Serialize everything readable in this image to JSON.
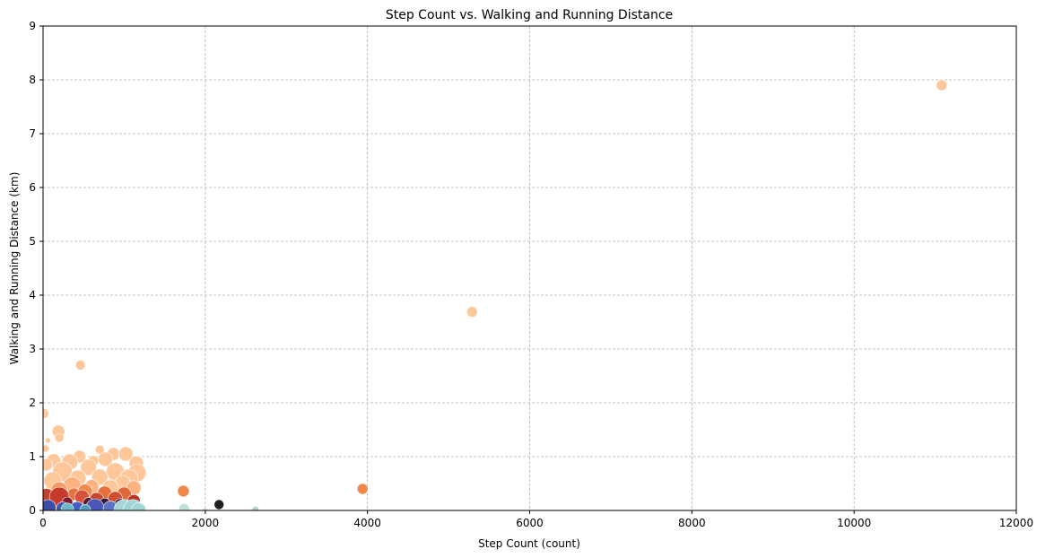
{
  "chart_data": {
    "type": "scatter",
    "title": "Step Count vs. Walking and Running Distance",
    "xlabel": "Step Count (count)",
    "ylabel": "Walking and Running Distance (km)",
    "xlim": [
      0,
      12000
    ],
    "ylim": [
      0,
      9
    ],
    "xticks": [
      0,
      2000,
      4000,
      6000,
      8000,
      10000,
      12000
    ],
    "yticks": [
      0,
      1,
      2,
      3,
      4,
      5,
      6,
      7,
      8,
      9
    ],
    "grid": true,
    "points": [
      {
        "x": 11080,
        "y": 7.9,
        "r": 6,
        "color": "#fdc79a"
      },
      {
        "x": 5290,
        "y": 3.69,
        "r": 6,
        "color": "#fdc79a"
      },
      {
        "x": 460,
        "y": 2.7,
        "r": 5.5,
        "color": "#fdc79a"
      },
      {
        "x": 10,
        "y": 1.8,
        "r": 5.5,
        "color": "#fdc79a"
      },
      {
        "x": 190,
        "y": 1.47,
        "r": 7,
        "color": "#fdc79a"
      },
      {
        "x": 200,
        "y": 1.35,
        "r": 5,
        "color": "#fdc79a"
      },
      {
        "x": 60,
        "y": 1.3,
        "r": 3,
        "color": "#fdc79a"
      },
      {
        "x": 30,
        "y": 1.15,
        "r": 4,
        "color": "#fdc79a"
      },
      {
        "x": 700,
        "y": 1.13,
        "r": 5,
        "color": "#fdc79a"
      },
      {
        "x": 870,
        "y": 1.05,
        "r": 7,
        "color": "#fdc79a"
      },
      {
        "x": 1020,
        "y": 1.05,
        "r": 8,
        "color": "#fdc79a"
      },
      {
        "x": 450,
        "y": 1.0,
        "r": 7,
        "color": "#fdc79a"
      },
      {
        "x": 130,
        "y": 0.92,
        "r": 8,
        "color": "#fdc79a"
      },
      {
        "x": 330,
        "y": 0.9,
        "r": 9,
        "color": "#fdc79a"
      },
      {
        "x": 620,
        "y": 0.92,
        "r": 6,
        "color": "#fdc79a"
      },
      {
        "x": 770,
        "y": 0.95,
        "r": 8,
        "color": "#fdc79a"
      },
      {
        "x": 1150,
        "y": 0.88,
        "r": 8,
        "color": "#fdc79a"
      },
      {
        "x": 40,
        "y": 0.85,
        "r": 7,
        "color": "#fdc79a"
      },
      {
        "x": 560,
        "y": 0.8,
        "r": 9,
        "color": "#fdc79a"
      },
      {
        "x": 890,
        "y": 0.72,
        "r": 10,
        "color": "#fdc79a"
      },
      {
        "x": 1160,
        "y": 0.7,
        "r": 10,
        "color": "#fdc79a"
      },
      {
        "x": 240,
        "y": 0.72,
        "r": 11,
        "color": "#fdc79a"
      },
      {
        "x": 700,
        "y": 0.62,
        "r": 9,
        "color": "#fdc79a"
      },
      {
        "x": 1060,
        "y": 0.6,
        "r": 10,
        "color": "#fdc79a"
      },
      {
        "x": 430,
        "y": 0.6,
        "r": 9,
        "color": "#fdc79a"
      },
      {
        "x": 980,
        "y": 0.5,
        "r": 9,
        "color": "#fdc79a"
      },
      {
        "x": 120,
        "y": 0.55,
        "r": 10,
        "color": "#fdc79a"
      },
      {
        "x": 830,
        "y": 0.42,
        "r": 9,
        "color": "#fdc79a"
      },
      {
        "x": 360,
        "y": 0.46,
        "r": 10,
        "color": "#fcb37f"
      },
      {
        "x": 600,
        "y": 0.44,
        "r": 8,
        "color": "#fcb37f"
      },
      {
        "x": 1120,
        "y": 0.42,
        "r": 8,
        "color": "#fcb37f"
      },
      {
        "x": 200,
        "y": 0.38,
        "r": 9,
        "color": "#f59a63"
      },
      {
        "x": 520,
        "y": 0.36,
        "r": 8,
        "color": "#f08a4f"
      },
      {
        "x": 1730,
        "y": 0.36,
        "r": 6.5,
        "color": "#ef8748"
      },
      {
        "x": 3940,
        "y": 0.4,
        "r": 6,
        "color": "#ef8748"
      },
      {
        "x": 760,
        "y": 0.32,
        "r": 8,
        "color": "#e8703c"
      },
      {
        "x": 1000,
        "y": 0.3,
        "r": 8,
        "color": "#e16536"
      },
      {
        "x": 380,
        "y": 0.3,
        "r": 7,
        "color": "#e5723f"
      },
      {
        "x": 40,
        "y": 0.26,
        "r": 9,
        "color": "#c6402e"
      },
      {
        "x": 200,
        "y": 0.25,
        "r": 11,
        "color": "#c73b2a"
      },
      {
        "x": 480,
        "y": 0.25,
        "r": 8,
        "color": "#d5533a"
      },
      {
        "x": 660,
        "y": 0.2,
        "r": 8,
        "color": "#c84530"
      },
      {
        "x": 890,
        "y": 0.22,
        "r": 8,
        "color": "#cf4c33"
      },
      {
        "x": 1120,
        "y": 0.18,
        "r": 7,
        "color": "#b8352a"
      },
      {
        "x": 300,
        "y": 0.15,
        "r": 6,
        "color": "#7a1d2c"
      },
      {
        "x": 560,
        "y": 0.14,
        "r": 6,
        "color": "#5c1a2e"
      },
      {
        "x": 760,
        "y": 0.13,
        "r": 6,
        "color": "#3b1530"
      },
      {
        "x": 950,
        "y": 0.12,
        "r": 6,
        "color": "#2a1f3d"
      },
      {
        "x": 2170,
        "y": 0.11,
        "r": 5.5,
        "color": "#1e1e1e"
      },
      {
        "x": 420,
        "y": 0.08,
        "r": 5,
        "color": "#1e1e1e"
      },
      {
        "x": 1070,
        "y": 0.08,
        "r": 5,
        "color": "#222831"
      },
      {
        "x": 60,
        "y": 0.05,
        "r": 9,
        "color": "#3b4ea8"
      },
      {
        "x": 240,
        "y": 0.04,
        "r": 7,
        "color": "#3f58b4"
      },
      {
        "x": 420,
        "y": 0.03,
        "r": 8,
        "color": "#4660c0"
      },
      {
        "x": 640,
        "y": 0.05,
        "r": 10,
        "color": "#4a57b8"
      },
      {
        "x": 830,
        "y": 0.04,
        "r": 8,
        "color": "#5d74c6"
      },
      {
        "x": 1000,
        "y": 0.02,
        "r": 11,
        "color": "#a3d5d6"
      },
      {
        "x": 1110,
        "y": 0.02,
        "r": 11,
        "color": "#a3d5d6"
      },
      {
        "x": 1180,
        "y": 0.01,
        "r": 8,
        "color": "#a3d5d6"
      },
      {
        "x": 300,
        "y": 0.02,
        "r": 7,
        "color": "#6bb6c7"
      },
      {
        "x": 520,
        "y": 0.01,
        "r": 6,
        "color": "#4f9fc1"
      },
      {
        "x": 1740,
        "y": 0.03,
        "r": 6,
        "color": "#bfe2d9"
      },
      {
        "x": 2000,
        "y": 0.0,
        "r": 3,
        "color": "#bfe2d9"
      },
      {
        "x": 2620,
        "y": 0.01,
        "r": 4,
        "color": "#a8d8cc"
      }
    ]
  }
}
